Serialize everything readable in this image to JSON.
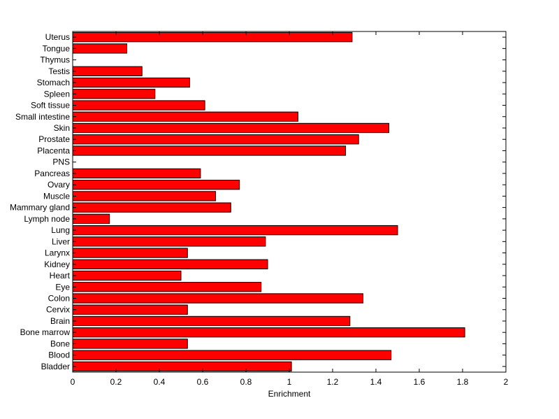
{
  "chart_data": {
    "type": "bar",
    "orientation": "horizontal",
    "title": "",
    "xlabel": "Enrichment",
    "ylabel": "",
    "xlim": [
      0,
      2
    ],
    "xticks": [
      "0",
      "0.2",
      "0.4",
      "0.6",
      "0.8",
      "1",
      "1.2",
      "1.4",
      "1.6",
      "1.8",
      "2"
    ],
    "grid": false,
    "legend": "none",
    "bar_color": "#ff0000",
    "categories": [
      "Bladder",
      "Blood",
      "Bone",
      "Bone marrow",
      "Brain",
      "Cervix",
      "Colon",
      "Eye",
      "Heart",
      "Kidney",
      "Larynx",
      "Liver",
      "Lung",
      "Lymph node",
      "Mammary gland",
      "Muscle",
      "Ovary",
      "Pancreas",
      "PNS",
      "Placenta",
      "Prostate",
      "Skin",
      "Small intestine",
      "Soft tissue",
      "Spleen",
      "Stomach",
      "Testis",
      "Thymus",
      "Tongue",
      "Uterus"
    ],
    "values": [
      1.01,
      1.47,
      0.53,
      1.81,
      1.28,
      0.53,
      1.34,
      0.87,
      0.5,
      0.9,
      0.53,
      0.89,
      1.5,
      0.17,
      0.73,
      0.66,
      0.77,
      0.59,
      0,
      1.26,
      1.32,
      1.46,
      1.04,
      0.61,
      0.38,
      0.54,
      0.32,
      0,
      0.25,
      1.29
    ]
  }
}
